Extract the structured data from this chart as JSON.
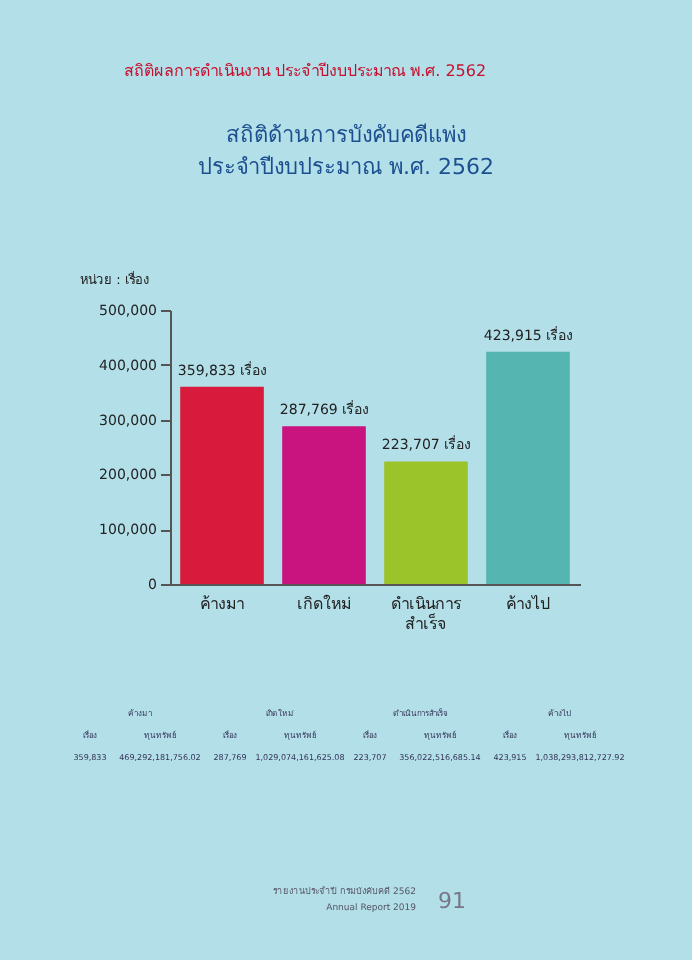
{
  "chart_data": {
    "type": "bar",
    "title": "สถิติด้านการบังคับคดีแพ่ง\nประจำปีงบประมาณ พ.ศ. 2562",
    "ylabel": "หน่วย : เรื่อง",
    "categories": [
      "ค้างมา",
      "เกิดใหม่",
      "ดำเนินการ\nสำเร็จ",
      "ค้างไป"
    ],
    "values": [
      359833,
      287769,
      223707,
      423915
    ],
    "colors": [
      "#d81b3c",
      "#c9137f",
      "#9bc42a",
      "#55b5b0"
    ],
    "value_labels": [
      "359,833 เรื่อง",
      "287,769 เรื่อง",
      "223,707 เรื่อง",
      "423,915 เรื่อง"
    ],
    "ylim": [
      0,
      500000
    ],
    "yticks": [
      {
        "value": 0,
        "label": "0"
      },
      {
        "value": 100000,
        "label": "100,000"
      },
      {
        "value": 200000,
        "label": "200,000"
      },
      {
        "value": 300000,
        "label": "300,000"
      },
      {
        "value": 400000,
        "label": "400,000"
      },
      {
        "value": 500000,
        "label": "500,000"
      }
    ],
    "grid": false,
    "annotations": [
      "สถิติผลการดำเนินงาน ประจำปีงบประมาณ พ.ศ. 2562",
      "ค้างมา",
      "เกิดใหม่",
      "ดำเนินการสำเร็จ",
      "ค้างไป",
      "เรื่อง",
      "ทุนทรัพย์",
      "เรื่อง",
      "ทุนทรัพย์",
      "เรื่อง",
      "ทุนทรัพย์",
      "เรื่อง",
      "ทุนทรัพย์",
      "359,833",
      "469,292,181,756.02",
      "287,769",
      "1,029,074,161,625.08",
      "223,707",
      "356,022,516,685.14",
      "423,915",
      "1,038,293,812,727.92",
      "รายงานประจำปี กรมบังคับคดี 2562",
      "Annual Report 2019",
      "91"
    ]
  }
}
